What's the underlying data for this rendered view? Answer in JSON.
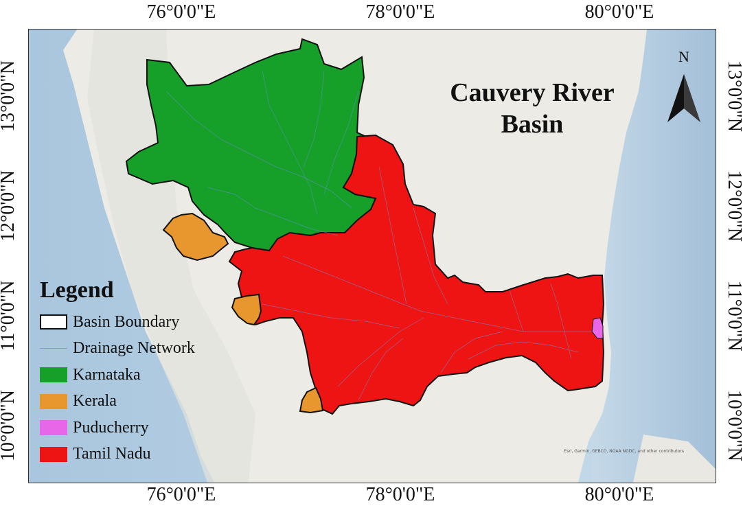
{
  "map": {
    "title_line1": "Cauvery River",
    "title_line2": "Basin",
    "north_label": "N",
    "attribution": "Esri, Garmin, GEBCO, NOAA NGDC, and other contributors",
    "top_coords": [
      "76°0'0\"E",
      "78°0'0\"E",
      "80°0'0\"E"
    ],
    "bottom_coords": [
      "76°0'0\"E",
      "78°0'0\"E",
      "80°0'0\"E"
    ],
    "left_coords": [
      "13°0'0\"N",
      "12°0'0\"N",
      "11°0'0\"N",
      "10°0'0\"N"
    ],
    "right_coords": [
      "13°0'0\"N",
      "12°0'0\"N",
      "11°0'0\"N",
      "10°0'0\"N"
    ]
  },
  "legend": {
    "title": "Legend",
    "items": [
      {
        "label": "Basin Boundary",
        "color": "#ffffff",
        "kind": "outline"
      },
      {
        "label": "Drainage Network",
        "color": "#7aa0d8",
        "kind": "line"
      },
      {
        "label": "Karnataka",
        "color": "#16a02a",
        "kind": "fill"
      },
      {
        "label": "Kerala",
        "color": "#e8962e",
        "kind": "fill"
      },
      {
        "label": "Puducherry",
        "color": "#e866e8",
        "kind": "fill"
      },
      {
        "label": "Tamil Nadu",
        "color": "#ee1414",
        "kind": "fill"
      }
    ]
  },
  "colors": {
    "sea": "#b6d0e4",
    "land": "#ecebe6",
    "karnataka": "#16a02a",
    "kerala": "#e8962e",
    "puducherry": "#e866e8",
    "tamil_nadu": "#ee1414",
    "boundary": "#111111"
  }
}
